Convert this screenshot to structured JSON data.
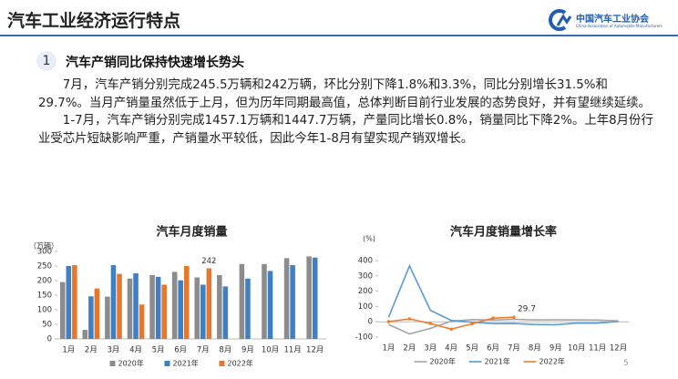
{
  "header": {
    "title": "汽车工业经济运行特点",
    "logo_name": "中国汽车工业协会",
    "logo_subtitle": "China Association of Automobile Manufacturers"
  },
  "section": {
    "number": "1",
    "heading": "汽车产销同比保持快速增长势头"
  },
  "paragraphs": [
    "7月，汽车产销分别完成245.5万辆和242万辆，环比分别下降1.8%和3.3%，同比分别增长31.5%和29.7%。当月产销量虽然低于上月，但为历年同期最高值，总体判断目前行业发展的态势良好，并有望继续延续。",
    "1-7月，汽车产销分别完成1457.1万辆和1447.7万辆，产量同比增长0.8%，销量同比下降2%。上年8月份行业受芯片短缺影响严重，产销量水平较低，因此今年1-8月有望实现产销双增长。"
  ],
  "page_number": "5",
  "chart_data": [
    {
      "type": "bar",
      "title": "汽车月度销量",
      "y_label": "（万辆）",
      "categories": [
        "1月",
        "2月",
        "3月",
        "4月",
        "5月",
        "6月",
        "7月",
        "8月",
        "9月",
        "10月",
        "11月",
        "12月"
      ],
      "series": [
        {
          "name": "2020年",
          "color": "#8c8c8c",
          "values": [
            195,
            31,
            145,
            207,
            219,
            230,
            211,
            219,
            257,
            257,
            277,
            283
          ]
        },
        {
          "name": "2021年",
          "color": "#3f7fc4",
          "values": [
            250,
            146,
            253,
            225,
            213,
            201,
            186,
            180,
            207,
            233,
            253,
            279
          ]
        },
        {
          "name": "2022年",
          "color": "#e8772e",
          "values": [
            253,
            173,
            223,
            118,
            186,
            250,
            242,
            null,
            null,
            null,
            null,
            null
          ],
          "value_labels": [
            null,
            null,
            null,
            null,
            null,
            null,
            "242",
            null,
            null,
            null,
            null,
            null
          ]
        }
      ],
      "ylim": [
        0,
        300
      ],
      "yticks": [
        0,
        50,
        100,
        150,
        200,
        250,
        300
      ],
      "grid": false
    },
    {
      "type": "line",
      "title": "汽车月度销量增长率",
      "y_label": "(%)",
      "categories": [
        "1月",
        "2月",
        "3月",
        "4月",
        "5月",
        "6月",
        "7月",
        "8月",
        "9月",
        "10月",
        "11月",
        "12月"
      ],
      "series": [
        {
          "name": "2020年",
          "color": "#a6a6a6",
          "values": [
            -18,
            -79,
            -43,
            4,
            14,
            11,
            16,
            12,
            13,
            12,
            11,
            6
          ]
        },
        {
          "name": "2021年",
          "color": "#5b9bd5",
          "values": [
            30,
            365,
            75,
            9,
            -3,
            -12,
            -11,
            -18,
            -19,
            -9,
            -9,
            2
          ]
        },
        {
          "name": "2022年",
          "color": "#ed7d31",
          "values": [
            1,
            19,
            -11,
            -48,
            -13,
            24,
            29.7,
            null,
            null,
            null,
            null,
            null
          ],
          "value_labels": [
            null,
            null,
            null,
            null,
            null,
            null,
            "29.7",
            null,
            null,
            null,
            null,
            null
          ]
        }
      ],
      "ylim": [
        -100,
        400
      ],
      "yticks": [
        -100,
        0,
        100,
        200,
        300,
        400
      ],
      "grid": false
    }
  ]
}
